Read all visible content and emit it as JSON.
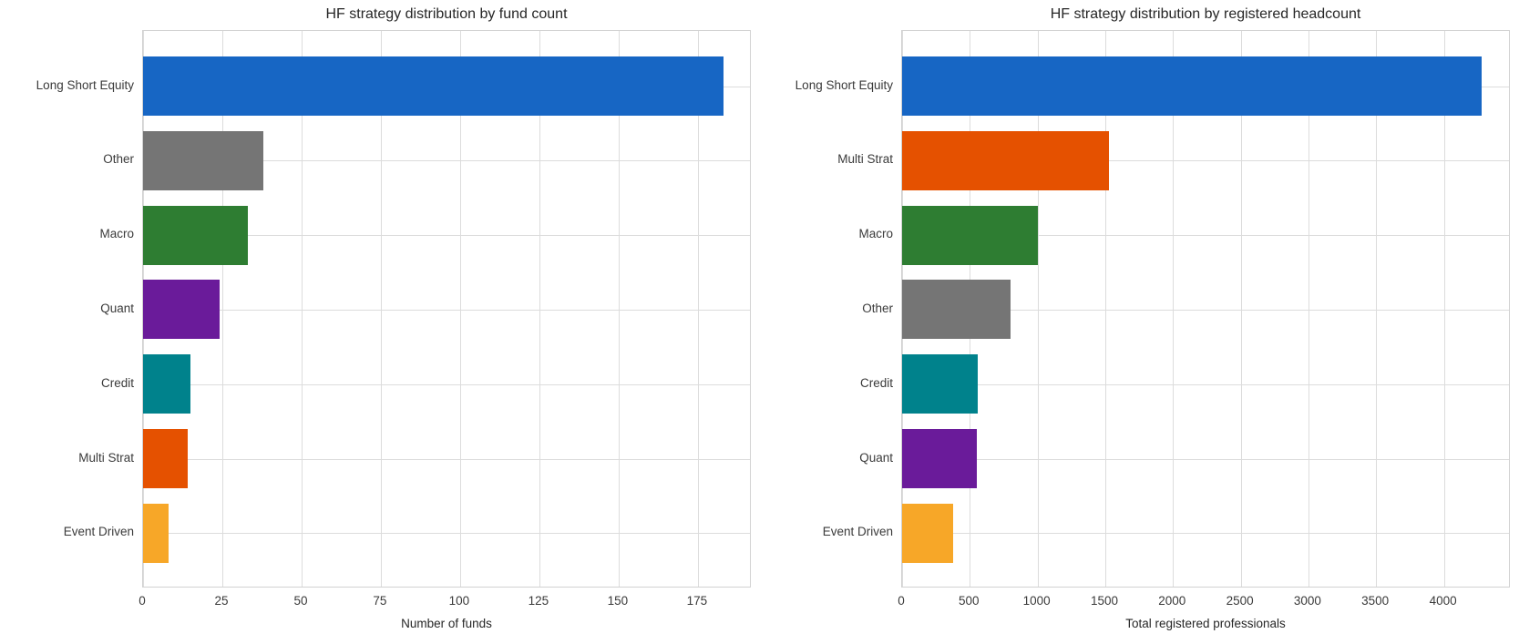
{
  "figure": {
    "background_color": "#ffffff",
    "grid_color": "#dcdcdc",
    "spine_color": "#d2d2d2",
    "text_color": "#262626"
  },
  "chart_data": [
    {
      "type": "bar",
      "orientation": "horizontal",
      "title": "HF strategy distribution by fund count",
      "categories": [
        "Long Short Equity",
        "Other",
        "Macro",
        "Quant",
        "Credit",
        "Multi Strat",
        "Event Driven"
      ],
      "values": [
        183,
        38,
        33,
        24,
        15,
        14,
        8
      ],
      "colors": [
        "#1766c4",
        "#757575",
        "#2e7d32",
        "#6a1b9a",
        "#00828c",
        "#e55100",
        "#f7a728"
      ],
      "xlabel": "Number of funds",
      "ylabel": "",
      "xticks": [
        0,
        25,
        50,
        75,
        100,
        125,
        150,
        175
      ],
      "xlim": [
        0,
        192
      ],
      "grid": true,
      "legend": null
    },
    {
      "type": "bar",
      "orientation": "horizontal",
      "title": "HF strategy distribution by registered headcount",
      "categories": [
        "Long Short Equity",
        "Multi Strat",
        "Macro",
        "Other",
        "Credit",
        "Quant",
        "Event Driven"
      ],
      "values": [
        4280,
        1530,
        1000,
        800,
        560,
        550,
        375
      ],
      "colors": [
        "#1766c4",
        "#e55100",
        "#2e7d32",
        "#757575",
        "#00828c",
        "#6a1b9a",
        "#f7a728"
      ],
      "xlabel": "Total registered professionals",
      "ylabel": "",
      "xticks": [
        0,
        500,
        1000,
        1500,
        2000,
        2500,
        3000,
        3500,
        4000
      ],
      "xlim": [
        0,
        4494
      ],
      "grid": true,
      "legend": null
    }
  ]
}
